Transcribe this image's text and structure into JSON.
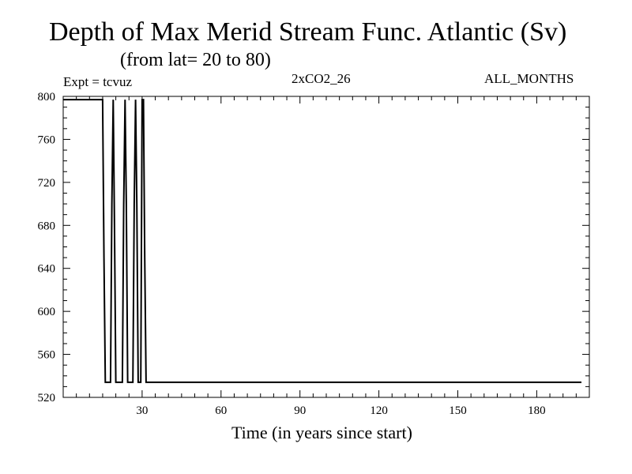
{
  "chart_data": {
    "type": "line",
    "title": "Depth of Max Merid Stream Func. Atlantic (Sv)",
    "subtitle": "(from lat= 20 to 80)",
    "experiment": "Expt = tcvuz",
    "run_name": "2xCO2_26",
    "period": "ALL_MONTHS",
    "xlabel": "Time (in years since start)",
    "ylabel": "",
    "xlim": [
      0,
      200
    ],
    "ylim": [
      520,
      800
    ],
    "x_ticks": [
      30,
      60,
      90,
      120,
      150,
      180
    ],
    "y_ticks": [
      520,
      560,
      600,
      640,
      680,
      720,
      760,
      800
    ],
    "grid": false,
    "series": [
      {
        "x": [
          0,
          15,
          15.5,
          16,
          18,
          18.5,
          19,
          19.5,
          20,
          20.5,
          21,
          22.5,
          23,
          23.5,
          24,
          24.5,
          25,
          26.5,
          27,
          27.5,
          28,
          28.5,
          29,
          29.5,
          30,
          30.5,
          31,
          31.5,
          197
        ],
        "y": [
          797,
          797,
          650,
          534,
          534,
          700,
          797,
          680,
          534,
          534,
          534,
          534,
          700,
          797,
          700,
          534,
          534,
          534,
          700,
          797,
          700,
          534,
          534,
          534,
          797,
          797,
          650,
          534,
          534
        ]
      }
    ]
  }
}
